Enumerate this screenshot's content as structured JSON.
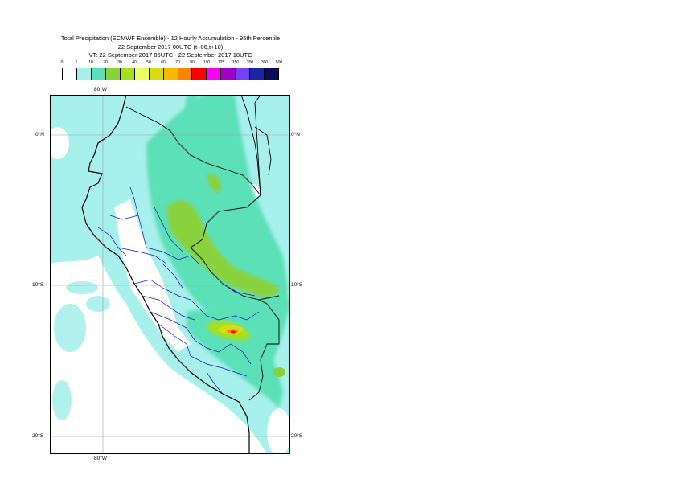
{
  "title": {
    "line1": "Total Precipitation (ECMWF Ensemble) - 12 Hourly Accumulation - 95th Percentile",
    "line2": "22 September 2017 00UTC (t+06,t+18)",
    "line3": "VT: 22 September 2017 06UTC - 22 September 2017 18UTC"
  },
  "legend": {
    "labels": [
      "0",
      "1",
      "10",
      "20",
      "30",
      "40",
      "50",
      "60",
      "70",
      "80",
      "100",
      "125",
      "150",
      "200",
      "300",
      "500"
    ],
    "colors": [
      "#ffffff",
      "#a8f0ec",
      "#5ce0b8",
      "#8ad23c",
      "#a4e01c",
      "#eefc64",
      "#d8dc14",
      "#f8b800",
      "#f88400",
      "#fc0000",
      "#fc00fc",
      "#a000c8",
      "#7444f4",
      "#1c24a8",
      "#0c0c58"
    ]
  },
  "map": {
    "lat_labels": {
      "top_left": "0°N",
      "top_right": "0°N",
      "mid_left": "10°S",
      "mid_right": "10°S",
      "bot_left": "20°S",
      "bot_right": "20°S"
    },
    "lon_labels": {
      "top": "80°W",
      "bottom": "80°W"
    }
  }
}
